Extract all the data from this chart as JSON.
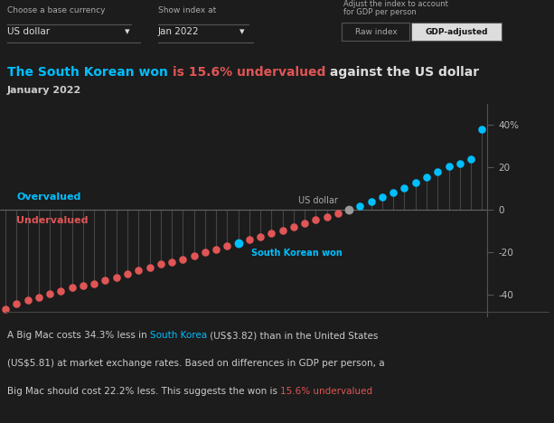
{
  "bg_color": "#1c1c1c",
  "chart_bg": "#1c1c1c",
  "footer_bg": "#1c1c1c",
  "title_parts": [
    {
      "text": "The South Korean won ",
      "color": "#00bfff"
    },
    {
      "text": "is 15.6% undervalued",
      "color": "#e05555"
    },
    {
      "text": " against the US dollar",
      "color": "#dddddd"
    }
  ],
  "subtitle": "January 2022",
  "subtitle_color": "#cccccc",
  "overvalued_label": "Overvalued",
  "undervalued_label": "Undervalued",
  "overvalued_color": "#00bfff",
  "undervalued_color": "#e05555",
  "us_dollar_label": "US dollar",
  "sk_won_label": "South Korean won",
  "sk_label_color": "#00bfff",
  "us_label_color": "#aaaaaa",
  "ylim": [
    -50,
    50
  ],
  "yticks": [
    -40,
    -20,
    0,
    20,
    40
  ],
  "ytick_labels": [
    "-40",
    "-20",
    "0",
    "20",
    "40%"
  ],
  "values": [
    -46.5,
    -44.0,
    -42.5,
    -41.0,
    -39.5,
    -38.0,
    -36.5,
    -35.5,
    -34.5,
    -33.0,
    -31.5,
    -30.0,
    -28.5,
    -27.0,
    -25.5,
    -24.5,
    -23.0,
    -21.5,
    -20.0,
    -18.5,
    -17.0,
    -15.6,
    -14.0,
    -12.5,
    -11.0,
    -9.5,
    -8.0,
    -6.0,
    -4.5,
    -3.0,
    -1.5,
    0.0,
    2.0,
    4.0,
    6.0,
    8.5,
    10.5,
    13.0,
    15.5,
    18.0,
    20.5,
    22.0,
    24.0,
    38.0
  ],
  "sk_won_index": 21,
  "us_dollar_index": 31,
  "dot_color_negative": "#e05555",
  "dot_color_positive": "#00bfff",
  "dot_color_us": "#999999",
  "stem_color": "#444444",
  "zero_line_color": "#666666",
  "controls_bg": "#252525",
  "footer_line_color": "#444444",
  "footer_lines": [
    [
      {
        "text": "A Big Mac costs 34.3% less in ",
        "color": "#cccccc"
      },
      {
        "text": "South Korea",
        "color": "#00bfff"
      },
      {
        "text": " (US$3.82) than in the United States",
        "color": "#cccccc"
      }
    ],
    [
      {
        "text": "(US$5.81) at market exchange rates. Based on differences in GDP per person, a",
        "color": "#cccccc"
      }
    ],
    [
      {
        "text": "Big Mac should cost 22.2% less. This suggests the won is ",
        "color": "#cccccc"
      },
      {
        "text": "15.6% undervalued",
        "color": "#e05555"
      }
    ]
  ]
}
